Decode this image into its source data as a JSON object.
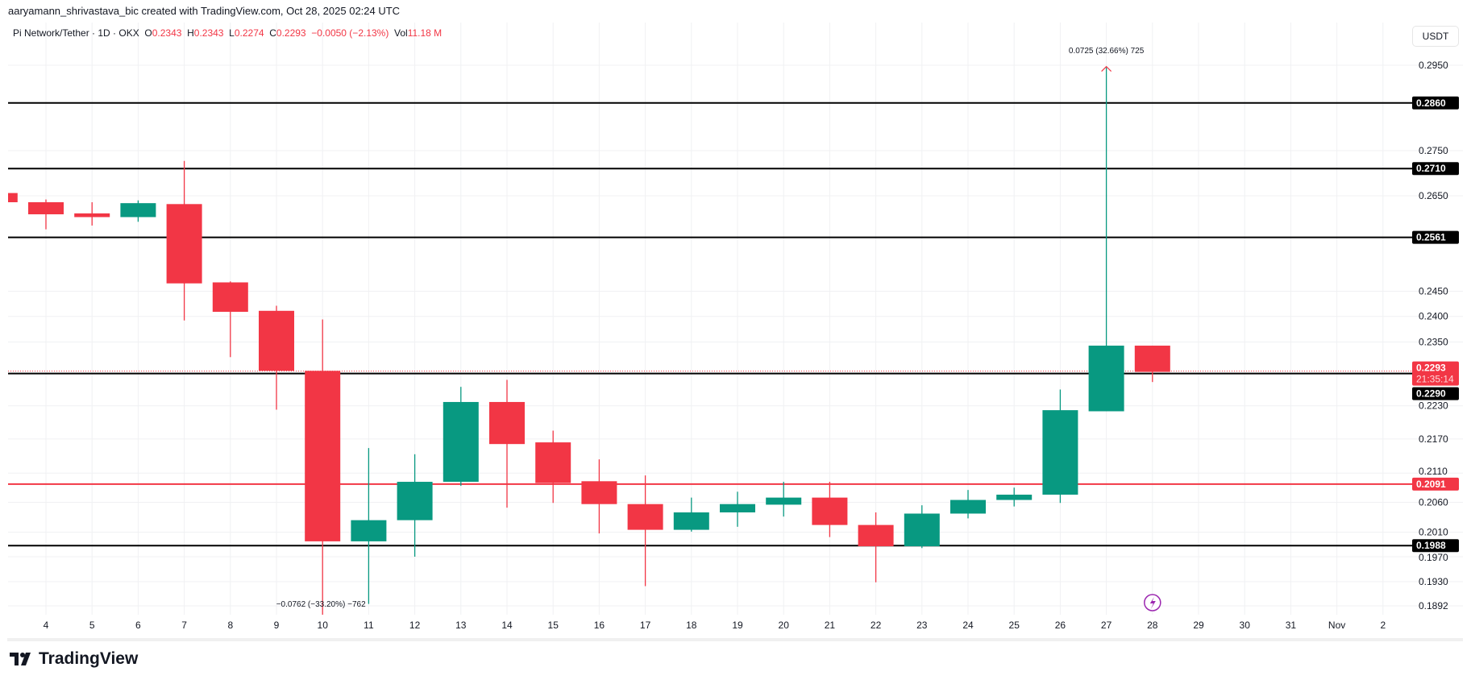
{
  "credit": "aaryamann_shrivastava_bic created with TradingView.com, Oct 28, 2025 02:24 UTC",
  "legend": {
    "symbol": "Pi Network/Tether · 1D · OKX",
    "o_label": "O",
    "o": "0.2343",
    "h_label": "H",
    "h": "0.2343",
    "l_label": "L",
    "l": "0.2274",
    "c_label": "C",
    "c": "0.2293",
    "change": "−0.0050 (−2.13%)",
    "vol_label": "Vol",
    "vol": "11.18 M"
  },
  "currency_button": "USDT",
  "brand": "TradingView",
  "colors": {
    "up": "#089981",
    "down": "#f23645",
    "level": "#000000",
    "red_level": "#f23645",
    "flash": "#9c27b0"
  },
  "chart_data": {
    "type": "candlestick",
    "y_scale": "log",
    "ylim": [
      0.1892,
      0.295
    ],
    "grid": true,
    "y_ticks": [
      "0.2950",
      "0.2750",
      "0.2650",
      "0.2450",
      "0.2400",
      "0.2350",
      "0.2230",
      "0.2170",
      "0.2110",
      "0.2060",
      "0.2010",
      "0.1970",
      "0.1930",
      "0.1892"
    ],
    "x_ticks": [
      {
        "day": 4,
        "label": "4"
      },
      {
        "day": 5,
        "label": "5"
      },
      {
        "day": 6,
        "label": "6"
      },
      {
        "day": 7,
        "label": "7"
      },
      {
        "day": 8,
        "label": "8"
      },
      {
        "day": 9,
        "label": "9"
      },
      {
        "day": 10,
        "label": "10"
      },
      {
        "day": 11,
        "label": "11"
      },
      {
        "day": 12,
        "label": "12"
      },
      {
        "day": 13,
        "label": "13"
      },
      {
        "day": 14,
        "label": "14"
      },
      {
        "day": 15,
        "label": "15"
      },
      {
        "day": 16,
        "label": "16"
      },
      {
        "day": 17,
        "label": "17"
      },
      {
        "day": 18,
        "label": "18"
      },
      {
        "day": 19,
        "label": "19"
      },
      {
        "day": 20,
        "label": "20"
      },
      {
        "day": 21,
        "label": "21"
      },
      {
        "day": 22,
        "label": "22"
      },
      {
        "day": 23,
        "label": "23"
      },
      {
        "day": 24,
        "label": "24"
      },
      {
        "day": 25,
        "label": "25"
      },
      {
        "day": 26,
        "label": "26"
      },
      {
        "day": 27,
        "label": "27"
      },
      {
        "day": 28,
        "label": "28"
      },
      {
        "day": 29,
        "label": "29"
      },
      {
        "day": 30,
        "label": "30"
      },
      {
        "day": 31,
        "label": "31"
      },
      {
        "day": 32,
        "label": "Nov"
      },
      {
        "day": 33,
        "label": "2"
      }
    ],
    "candles": [
      {
        "day": 3,
        "o": 0.2656,
        "h": 0.2656,
        "l": 0.2636,
        "c": 0.2636
      },
      {
        "day": 4,
        "o": 0.2636,
        "h": 0.2642,
        "l": 0.2578,
        "c": 0.261
      },
      {
        "day": 5,
        "o": 0.2612,
        "h": 0.2636,
        "l": 0.2586,
        "c": 0.2604
      },
      {
        "day": 6,
        "o": 0.2604,
        "h": 0.264,
        "l": 0.2594,
        "c": 0.2634
      },
      {
        "day": 7,
        "o": 0.2632,
        "h": 0.2727,
        "l": 0.2392,
        "c": 0.2466
      },
      {
        "day": 8,
        "o": 0.2468,
        "h": 0.247,
        "l": 0.2321,
        "c": 0.2409
      },
      {
        "day": 9,
        "o": 0.2411,
        "h": 0.2421,
        "l": 0.2223,
        "c": 0.2295
      },
      {
        "day": 10,
        "o": 0.2295,
        "h": 0.2394,
        "l": 0.1878,
        "c": 0.1995
      },
      {
        "day": 11,
        "o": 0.1995,
        "h": 0.2154,
        "l": 0.1895,
        "c": 0.203
      },
      {
        "day": 12,
        "o": 0.203,
        "h": 0.2143,
        "l": 0.197,
        "c": 0.2095
      },
      {
        "day": 13,
        "o": 0.2095,
        "h": 0.2265,
        "l": 0.2088,
        "c": 0.2237
      },
      {
        "day": 14,
        "o": 0.2237,
        "h": 0.2278,
        "l": 0.2051,
        "c": 0.2161
      },
      {
        "day": 15,
        "o": 0.2164,
        "h": 0.2185,
        "l": 0.2059,
        "c": 0.2093
      },
      {
        "day": 16,
        "o": 0.2096,
        "h": 0.2134,
        "l": 0.2008,
        "c": 0.2057
      },
      {
        "day": 17,
        "o": 0.2057,
        "h": 0.2106,
        "l": 0.1923,
        "c": 0.2014
      },
      {
        "day": 18,
        "o": 0.2014,
        "h": 0.2068,
        "l": 0.2011,
        "c": 0.2043
      },
      {
        "day": 19,
        "o": 0.2043,
        "h": 0.2078,
        "l": 0.2019,
        "c": 0.2057
      },
      {
        "day": 20,
        "o": 0.2056,
        "h": 0.2095,
        "l": 0.2036,
        "c": 0.2068
      },
      {
        "day": 21,
        "o": 0.2068,
        "h": 0.2095,
        "l": 0.2002,
        "c": 0.2022
      },
      {
        "day": 22,
        "o": 0.2022,
        "h": 0.2043,
        "l": 0.1929,
        "c": 0.1987
      },
      {
        "day": 23,
        "o": 0.1987,
        "h": 0.2055,
        "l": 0.1984,
        "c": 0.2041
      },
      {
        "day": 24,
        "o": 0.2041,
        "h": 0.2081,
        "l": 0.2033,
        "c": 0.2064
      },
      {
        "day": 25,
        "o": 0.2064,
        "h": 0.2085,
        "l": 0.2053,
        "c": 0.2073
      },
      {
        "day": 26,
        "o": 0.2073,
        "h": 0.226,
        "l": 0.2059,
        "c": 0.2222
      },
      {
        "day": 27,
        "o": 0.222,
        "h": 0.2945,
        "l": 0.222,
        "c": 0.2343
      },
      {
        "day": 28,
        "o": 0.2343,
        "h": 0.2343,
        "l": 0.2274,
        "c": 0.2293
      }
    ],
    "levels": [
      {
        "price": 0.286,
        "label": "0.2860",
        "color": "#000000"
      },
      {
        "price": 0.271,
        "label": "0.2710",
        "color": "#000000"
      },
      {
        "price": 0.2561,
        "label": "0.2561",
        "color": "#000000"
      },
      {
        "price": 0.229,
        "label": "0.2290",
        "color": "#000000"
      },
      {
        "price": 0.2091,
        "label": "0.2091",
        "color": "#f23645"
      },
      {
        "price": 0.1988,
        "label": "0.1988",
        "color": "#000000"
      }
    ],
    "last_price": {
      "price": 0.2293,
      "label": "0.2293",
      "countdown": "21:35:14"
    },
    "annotations": [
      {
        "day": 27,
        "price": 0.2945,
        "text": "0.0725 (32.66%) 725",
        "position": "above"
      },
      {
        "day": 10,
        "price": 0.1878,
        "text": "−0.0762 (−33.20%) −762",
        "position": "below"
      }
    ],
    "event_marker": {
      "day": 28,
      "icon": "flash-icon"
    }
  }
}
